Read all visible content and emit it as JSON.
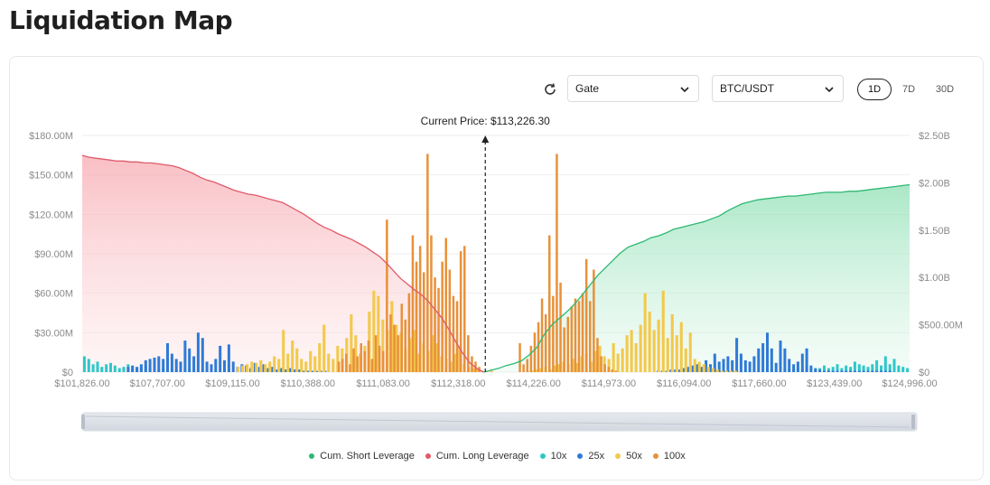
{
  "page": {
    "title": "Liquidation Map"
  },
  "controls": {
    "exchange": "Gate",
    "pair": "BTC/USDT",
    "ranges": [
      "1D",
      "7D",
      "30D"
    ],
    "active_range": "1D"
  },
  "icons": {
    "refresh": "refresh-icon",
    "dropdown": "chevron-down-icon"
  },
  "colors": {
    "short_cum": "#2eb872",
    "long_cum": "#e05a6a",
    "lev_10x": "#2ec7c9",
    "lev_25x": "#2f7ad6",
    "lev_50x": "#f2c94c",
    "lev_100x": "#e8913a"
  },
  "chart_data": {
    "type": "bar",
    "current_price_label": "Current Price: $113,226.30",
    "current_price": 113226.3,
    "x_tick_labels": [
      "$101,826.00",
      "$107,707.00",
      "$109,115.00",
      "$110,388.00",
      "$111,083.00",
      "$112,318.00",
      "$114,226.00",
      "$114,973.00",
      "$116,094.00",
      "$117,660.00",
      "$123,439.00",
      "$124,996.00"
    ],
    "y_left_ticks": [
      "$0",
      "$30.00M",
      "$60.00M",
      "$90.00M",
      "$120.00M",
      "$150.00M",
      "$180.00M"
    ],
    "y_left_range": [
      0,
      180
    ],
    "y_right_ticks": [
      "$0",
      "$500.00M",
      "$1.00B",
      "$1.50B",
      "$2.00B",
      "$2.50B"
    ],
    "y_right_range": [
      0,
      2.5
    ],
    "grid": true,
    "legend_position": "bottom",
    "legend": [
      "Cum. Short Leverage",
      "Cum. Long Leverage",
      "10x",
      "25x",
      "50x",
      "100x"
    ],
    "bar_series": [
      {
        "name": "10x",
        "values": [
          12,
          10,
          6,
          8,
          4,
          6,
          7,
          5,
          3,
          4,
          6,
          4,
          3,
          4,
          5,
          3,
          3,
          2,
          3,
          2,
          3,
          2,
          2,
          3,
          2,
          2,
          1,
          2,
          1,
          1,
          1,
          1,
          1,
          1,
          0,
          0,
          0,
          0,
          0,
          0,
          0,
          0,
          0,
          0,
          0,
          0,
          0,
          0,
          0,
          0,
          0,
          0,
          0,
          0,
          0,
          0,
          0,
          0,
          0,
          0,
          0,
          0,
          0,
          0,
          0,
          0,
          0,
          0,
          0,
          0,
          0,
          0,
          0,
          0,
          0,
          0,
          0,
          0,
          0,
          0,
          0,
          0,
          0,
          0,
          0,
          0,
          0,
          0,
          0,
          0,
          0,
          0,
          0,
          0,
          0,
          0,
          0,
          0,
          0,
          0,
          0,
          0,
          0,
          0,
          0,
          0,
          0,
          0,
          0,
          0,
          0,
          0,
          0,
          0,
          0,
          0,
          0,
          0,
          0,
          0,
          0,
          0,
          0,
          0,
          0,
          0,
          0,
          0,
          0,
          0,
          0,
          0,
          0,
          0,
          0,
          0,
          0,
          0,
          0,
          0,
          0,
          0,
          0,
          0,
          0,
          0,
          0,
          1,
          1,
          1,
          1,
          1,
          1,
          2,
          1,
          2,
          2,
          2,
          1,
          2,
          3,
          2,
          2,
          3,
          2,
          4,
          3,
          2,
          3,
          5,
          3,
          4,
          6,
          3,
          5,
          4,
          8,
          6,
          5,
          4,
          6,
          9,
          5,
          12,
          6,
          10,
          5,
          4,
          3
        ]
      },
      {
        "name": "25x",
        "values": [
          0,
          0,
          0,
          0,
          0,
          0,
          0,
          0,
          0,
          0,
          4,
          5,
          4,
          6,
          9,
          10,
          11,
          12,
          10,
          22,
          14,
          10,
          8,
          24,
          18,
          12,
          30,
          26,
          8,
          6,
          10,
          20,
          9,
          21,
          8,
          4,
          6,
          5,
          3,
          7,
          4,
          6,
          3,
          4,
          2,
          3,
          2,
          3,
          2,
          2,
          1,
          1,
          1,
          1,
          1,
          1,
          0,
          0,
          0,
          0,
          0,
          0,
          0,
          0,
          0,
          0,
          0,
          0,
          0,
          0,
          0,
          0,
          0,
          0,
          0,
          0,
          0,
          0,
          0,
          0,
          0,
          0,
          0,
          0,
          0,
          0,
          0,
          0,
          0,
          0,
          0,
          0,
          0,
          0,
          0,
          0,
          0,
          0,
          0,
          0,
          0,
          0,
          0,
          0,
          0,
          0,
          0,
          0,
          0,
          0,
          0,
          0,
          0,
          0,
          0,
          0,
          0,
          0,
          0,
          0,
          0,
          0,
          0,
          0,
          0,
          0,
          0,
          0,
          0,
          0,
          0,
          1,
          1,
          1,
          2,
          2,
          2,
          3,
          4,
          5,
          6,
          4,
          9,
          6,
          14,
          8,
          10,
          12,
          9,
          26,
          14,
          9,
          8,
          12,
          18,
          22,
          30,
          18,
          7,
          24,
          18,
          10,
          6,
          8,
          14,
          18,
          5,
          3,
          2,
          1,
          1,
          1,
          1,
          1,
          1,
          1,
          1,
          1,
          1,
          1,
          1,
          1,
          1,
          1,
          1,
          0,
          0,
          0,
          0
        ]
      },
      {
        "name": "50x",
        "values": [
          0,
          0,
          0,
          0,
          0,
          0,
          0,
          0,
          0,
          0,
          0,
          0,
          0,
          0,
          0,
          0,
          0,
          0,
          0,
          0,
          0,
          0,
          0,
          0,
          0,
          0,
          0,
          0,
          0,
          0,
          0,
          0,
          0,
          0,
          4,
          5,
          6,
          8,
          7,
          9,
          6,
          8,
          12,
          10,
          32,
          14,
          24,
          18,
          10,
          8,
          16,
          12,
          22,
          36,
          14,
          10,
          20,
          18,
          26,
          44,
          28,
          14,
          20,
          46,
          62,
          58,
          40,
          32,
          54,
          36,
          30,
          18,
          26,
          32,
          14,
          22,
          16,
          28,
          22,
          12,
          10,
          8,
          14,
          20,
          6,
          4,
          3,
          2,
          1,
          1,
          1,
          0,
          0,
          0,
          0,
          0,
          0,
          0,
          1,
          1,
          2,
          3,
          4,
          2,
          5,
          6,
          8,
          6,
          10,
          7,
          12,
          14,
          8,
          16,
          20,
          12,
          10,
          22,
          14,
          18,
          28,
          32,
          22,
          36,
          60,
          46,
          32,
          40,
          62,
          26,
          44,
          28,
          38,
          18,
          30,
          10,
          8,
          6,
          4,
          3,
          2,
          1,
          1,
          1,
          1,
          0,
          0,
          0,
          0,
          0,
          0,
          0,
          0,
          0,
          0,
          0,
          0,
          0,
          0,
          0,
          0,
          0,
          0,
          0,
          0,
          0,
          0,
          0,
          0,
          0,
          0,
          0,
          0,
          0,
          0,
          0,
          0,
          0,
          0,
          0,
          0,
          0,
          0
        ]
      },
      {
        "name": "100x",
        "values": [
          0,
          0,
          0,
          0,
          0,
          0,
          0,
          0,
          0,
          0,
          0,
          0,
          0,
          0,
          0,
          0,
          0,
          0,
          0,
          0,
          0,
          0,
          0,
          0,
          0,
          0,
          0,
          0,
          0,
          0,
          0,
          0,
          0,
          0,
          0,
          0,
          0,
          0,
          0,
          0,
          0,
          0,
          0,
          0,
          0,
          0,
          0,
          0,
          0,
          0,
          0,
          0,
          0,
          0,
          0,
          0,
          0,
          0,
          0,
          0,
          0,
          0,
          0,
          0,
          0,
          0,
          0,
          0,
          0,
          8,
          10,
          14,
          6,
          18,
          12,
          22,
          16,
          24,
          10,
          28,
          20,
          16,
          116,
          44,
          36,
          28,
          52,
          40,
          60,
          104,
          84,
          96,
          76,
          166,
          104,
          72,
          64,
          84,
          102,
          78,
          58,
          54,
          92,
          96,
          28,
          12,
          8,
          4,
          0,
          0,
          0,
          0,
          0,
          0,
          0,
          0,
          0,
          0,
          22,
          6,
          10,
          20,
          30,
          38,
          56,
          44,
          104,
          58,
          166,
          68,
          34,
          42,
          50,
          56,
          54,
          60,
          86,
          54,
          78,
          26,
          12,
          6,
          4,
          2,
          1,
          0,
          0,
          0,
          0,
          0,
          0,
          0,
          0,
          0,
          0,
          0,
          0,
          0,
          0,
          0,
          0,
          0,
          0,
          0,
          0,
          0,
          0,
          0,
          0,
          0,
          0,
          0,
          0,
          0,
          0,
          0,
          0,
          0,
          0,
          0,
          0,
          0,
          0,
          0,
          0,
          0,
          0,
          0,
          0,
          0,
          0,
          0,
          0,
          0,
          0,
          0,
          0,
          0,
          0,
          0,
          0,
          0,
          0,
          0,
          0,
          0,
          0,
          0,
          0,
          0,
          0,
          0,
          0,
          0,
          0,
          0,
          0,
          0,
          0,
          0,
          0,
          0,
          0,
          0
        ]
      }
    ],
    "cum_long_values_B": [
      2.29,
      2.27,
      2.26,
      2.25,
      2.24,
      2.23,
      2.23,
      2.22,
      2.22,
      2.21,
      2.21,
      2.2,
      2.19,
      2.18,
      2.16,
      2.13,
      2.1,
      2.06,
      2.03,
      2.01,
      1.98,
      1.95,
      1.92,
      1.9,
      1.88,
      1.87,
      1.85,
      1.83,
      1.81,
      1.79,
      1.75,
      1.71,
      1.67,
      1.62,
      1.57,
      1.53,
      1.5,
      1.46,
      1.43,
      1.4,
      1.36,
      1.32,
      1.27,
      1.22,
      1.15,
      1.07,
      0.99,
      0.93,
      0.87,
      0.82,
      0.75,
      0.66,
      0.57,
      0.45,
      0.32,
      0.2,
      0.1,
      0.04,
      0.0
    ],
    "cum_short_values_B": [
      0.0,
      0.02,
      0.04,
      0.07,
      0.09,
      0.12,
      0.18,
      0.26,
      0.4,
      0.5,
      0.57,
      0.64,
      0.72,
      0.82,
      0.92,
      1.02,
      1.1,
      1.18,
      1.26,
      1.32,
      1.35,
      1.38,
      1.42,
      1.44,
      1.47,
      1.51,
      1.53,
      1.55,
      1.57,
      1.59,
      1.62,
      1.65,
      1.7,
      1.74,
      1.78,
      1.8,
      1.82,
      1.83,
      1.84,
      1.85,
      1.86,
      1.86,
      1.87,
      1.88,
      1.89,
      1.9,
      1.9,
      1.9,
      1.91,
      1.91,
      1.92,
      1.93,
      1.94,
      1.95,
      1.96,
      1.97,
      1.98
    ]
  }
}
